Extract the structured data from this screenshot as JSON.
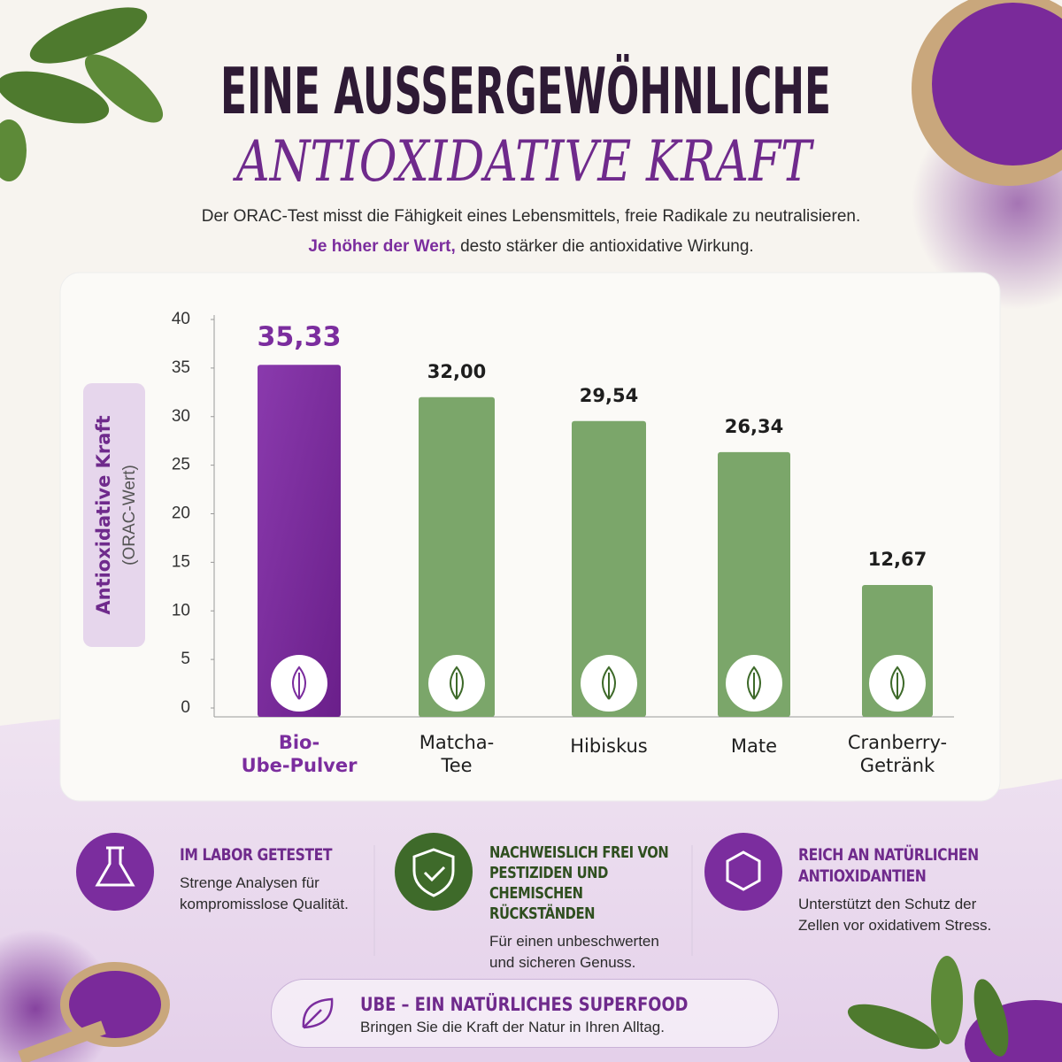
{
  "header": {
    "title_line1": "EINE AUSSERGEWÖHNLICHE",
    "title_line2": "ANTIOXIDATIVE KRAFT",
    "intro": "Der ORAC-Test misst die Fähigkeit eines Lebensmittels, freie Radikale zu neutralisieren.",
    "intro_highlight": "Je höher der Wert,",
    "intro_rest": "desto stärker die antioxidative Wirkung."
  },
  "chart_data": {
    "type": "bar",
    "y_label": "Antioxidative Kraft",
    "y_label_sub": "(ORAC-Wert)",
    "categories": [
      "Bio-\nUbe-Pulver",
      "Matcha-\nTee",
      "Hibiskus",
      "Mate",
      "Cranberry-\nGetränk"
    ],
    "values": [
      35.33,
      32.0,
      29.54,
      26.34,
      12.67
    ],
    "value_labels": [
      "35,33",
      "32,00",
      "29,54",
      "26,34",
      "12,67"
    ],
    "colors": [
      "#7b2d9e",
      "#7ba66a",
      "#7ba66a",
      "#7ba66a",
      "#7ba66a"
    ],
    "ylim": [
      0,
      40
    ],
    "yticks": [
      0,
      5,
      10,
      15,
      20,
      25,
      30,
      35,
      40
    ],
    "grid": false
  },
  "features": [
    {
      "title": "IM LABOR GETESTET",
      "text": "Strenge Analysen für kompromisslose Qualität."
    },
    {
      "title": "NACHWEISLICH FREI VON PESTIZIDEN UND CHEMISCHEN RÜCKSTÄNDEN",
      "text": "Für einen unbeschwerten und sicheren Genuss."
    },
    {
      "title": "REICH AN NATÜRLICHEN ANTIOXIDANTIEN",
      "text": "Unterstützt den Schutz der Zellen vor oxidativem Stress."
    }
  ],
  "footer": {
    "title": "UBE – EIN NATÜRLICHES SUPERFOOD",
    "text": "Bringen Sie die Kraft der Natur in Ihren Alltag."
  }
}
